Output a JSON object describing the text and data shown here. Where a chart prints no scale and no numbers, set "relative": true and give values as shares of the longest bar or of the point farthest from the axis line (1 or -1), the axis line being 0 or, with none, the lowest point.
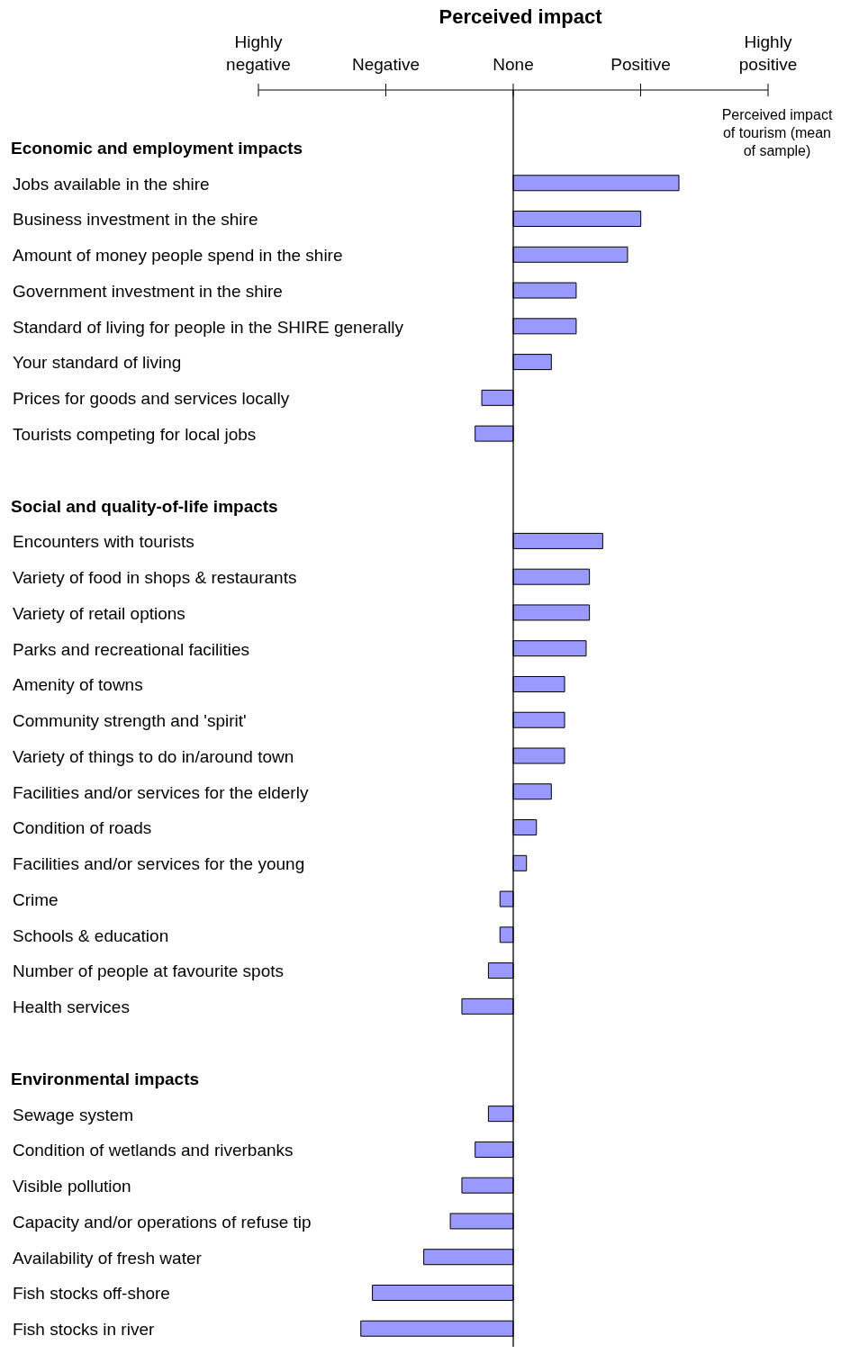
{
  "chart_data": {
    "type": "bar",
    "orientation": "horizontal",
    "relative": true,
    "title": "Perceived impact",
    "categories": [
      "Economic and employment impacts",
      "Jobs available in the shire",
      "Business investment in the shire",
      "Amount of money people spend in the shire",
      "Government investment in the shire",
      "Standard of living for people in the SHIRE generally",
      "Your standard of living",
      "Prices for goods and services locally",
      "Tourists competing for local jobs",
      null,
      "Social and quality-of-life impacts",
      "Encounters with tourists",
      "Variety of food in shops & restaurants",
      "Variety of retail options",
      "Parks and recreational facilities",
      "Amenity of towns",
      "Community strength and 'spirit'",
      "Variety of things to do in/around town",
      "Facilities and/or services for the elderly",
      "Condition of roads",
      "Facilities and/or services for the young",
      "Crime",
      "Schools & education",
      "Number of people at favourite spots",
      "Health services",
      null,
      "Environmental impacts",
      "Sewage system",
      "Condition of wetlands and riverbanks",
      "Visible pollution",
      "Capacity and/or operations of refuse tip",
      "Availability of fresh water",
      "Fish stocks off-shore",
      "Fish stocks in river"
    ],
    "values": [
      null,
      1,
      0.77,
      0.69,
      0.38,
      0.38,
      0.23,
      -0.19,
      -0.23,
      null,
      null,
      0.54,
      0.46,
      0.46,
      0.44,
      0.31,
      0.31,
      0.31,
      0.23,
      0.14,
      0.08,
      -0.08,
      -0.08,
      -0.15,
      -0.31,
      null,
      null,
      -0.15,
      -0.23,
      -0.31,
      -0.38,
      -0.54,
      -0.85,
      -0.92
    ],
    "color": "#9999ff",
    "ref_lines": [
      {
        "axis": "x",
        "value": 0,
        "color": "#000000"
      }
    ],
    "annotations": [
      "Highly negative",
      "Negative",
      "None",
      "Positive",
      "Highly positive",
      "Perceived impact of tourism (mean of sample)"
    ]
  }
}
